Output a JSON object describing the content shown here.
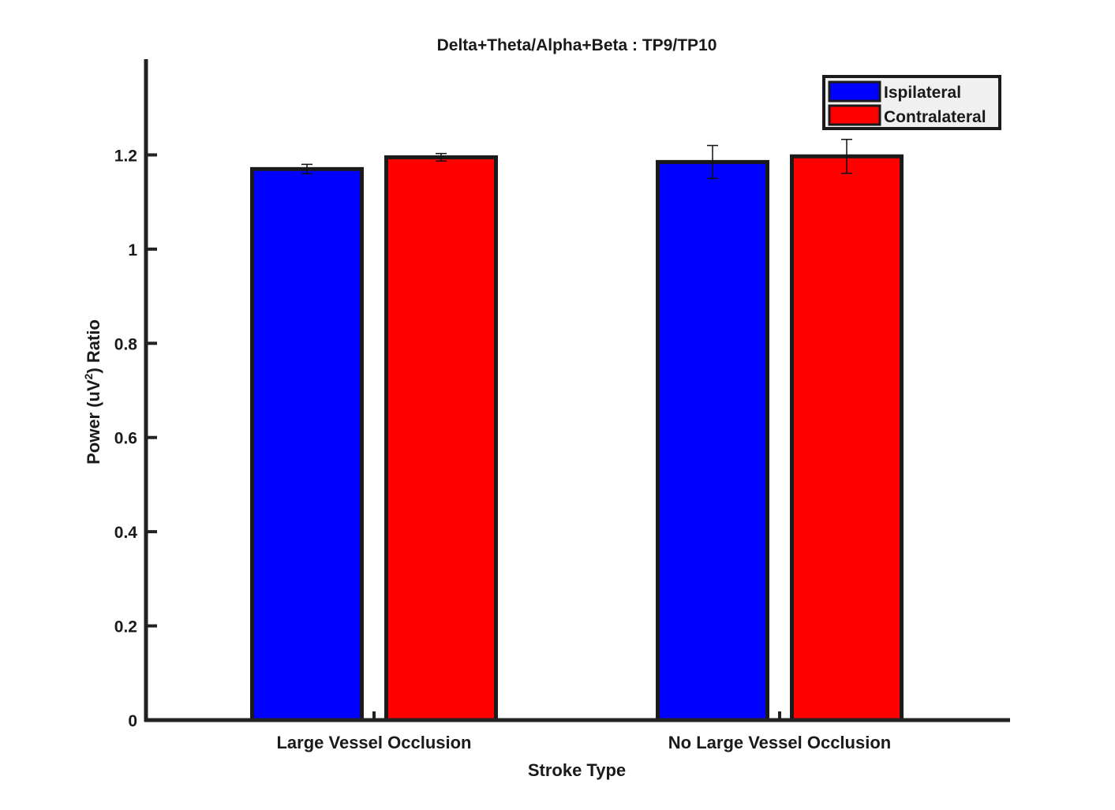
{
  "chart_data": {
    "type": "bar",
    "title": "Delta+Theta/Alpha+Beta :  TP9/TP10",
    "xlabel": "Stroke Type",
    "ylabel_prefix": "Power (uV",
    "ylabel_superscript": "2",
    "ylabel_suffix": ") Ratio",
    "categories": [
      "Large Vessel Occlusion",
      "No Large Vessel Occlusion"
    ],
    "series": [
      {
        "name": "Ispilateral",
        "color": "#0000ff",
        "values": [
          1.17,
          1.185
        ],
        "errors": [
          0.01,
          0.035
        ]
      },
      {
        "name": "Contralateral",
        "color": "#ff0000",
        "values": [
          1.195,
          1.197
        ],
        "errors": [
          0.008,
          0.036
        ]
      }
    ],
    "ylim": [
      0,
      1.4
    ],
    "yticks": [
      0,
      0.2,
      0.4,
      0.6,
      0.8,
      1,
      1.2
    ],
    "ytick_labels": [
      "0",
      "0.2",
      "0.4",
      "0.6",
      "0.8",
      "1",
      "1.2"
    ],
    "legend_position": "top-right",
    "grid": false
  }
}
